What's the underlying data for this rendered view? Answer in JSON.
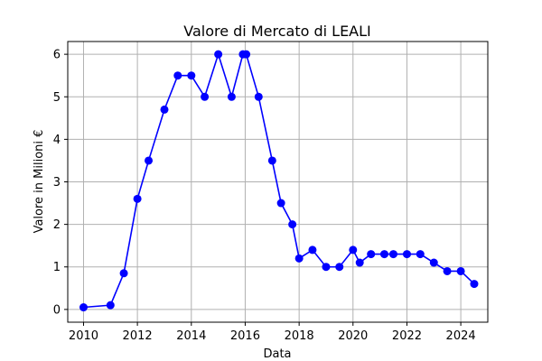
{
  "chart_data": {
    "type": "line",
    "title": "Valore di Mercato di LEALI",
    "xlabel": "Data",
    "ylabel": "Valore in Milioni €",
    "x_ticks": [
      "2010",
      "2012",
      "2014",
      "2016",
      "2018",
      "2020",
      "2022",
      "2024"
    ],
    "y_ticks": [
      "0",
      "1",
      "2",
      "3",
      "4",
      "5",
      "6"
    ],
    "xlim": [
      "2009-06-01",
      "2025-01-01"
    ],
    "ylim": [
      -0.3,
      6.3
    ],
    "grid": true,
    "color": "#0000ff",
    "series": [
      {
        "x": [
          "2010-01-01",
          "2011-01-01",
          "2011-07-01",
          "2012-01-01",
          "2012-06-01",
          "2013-01-01",
          "2013-07-01",
          "2014-01-01",
          "2014-07-01",
          "2015-01-01",
          "2015-07-01",
          "2015-12-01",
          "2016-01-15",
          "2016-07-01",
          "2017-01-01",
          "2017-05-01",
          "2017-10-01",
          "2018-01-01",
          "2018-07-01",
          "2019-01-01",
          "2019-07-01",
          "2020-01-01",
          "2020-04-01",
          "2020-09-01",
          "2021-03-01",
          "2021-07-01",
          "2022-01-01",
          "2022-07-01",
          "2023-01-01",
          "2023-07-01",
          "2024-01-01",
          "2024-07-01"
        ],
        "y": [
          0.05,
          0.1,
          0.85,
          2.6,
          3.5,
          4.7,
          5.5,
          5.5,
          5.0,
          6.0,
          5.0,
          6.0,
          6.0,
          5.0,
          3.5,
          2.5,
          2.0,
          1.2,
          1.4,
          1.0,
          1.0,
          1.4,
          1.1,
          1.3,
          1.3,
          1.3,
          1.3,
          1.3,
          1.1,
          0.9,
          0.9,
          0.6
        ]
      }
    ]
  }
}
